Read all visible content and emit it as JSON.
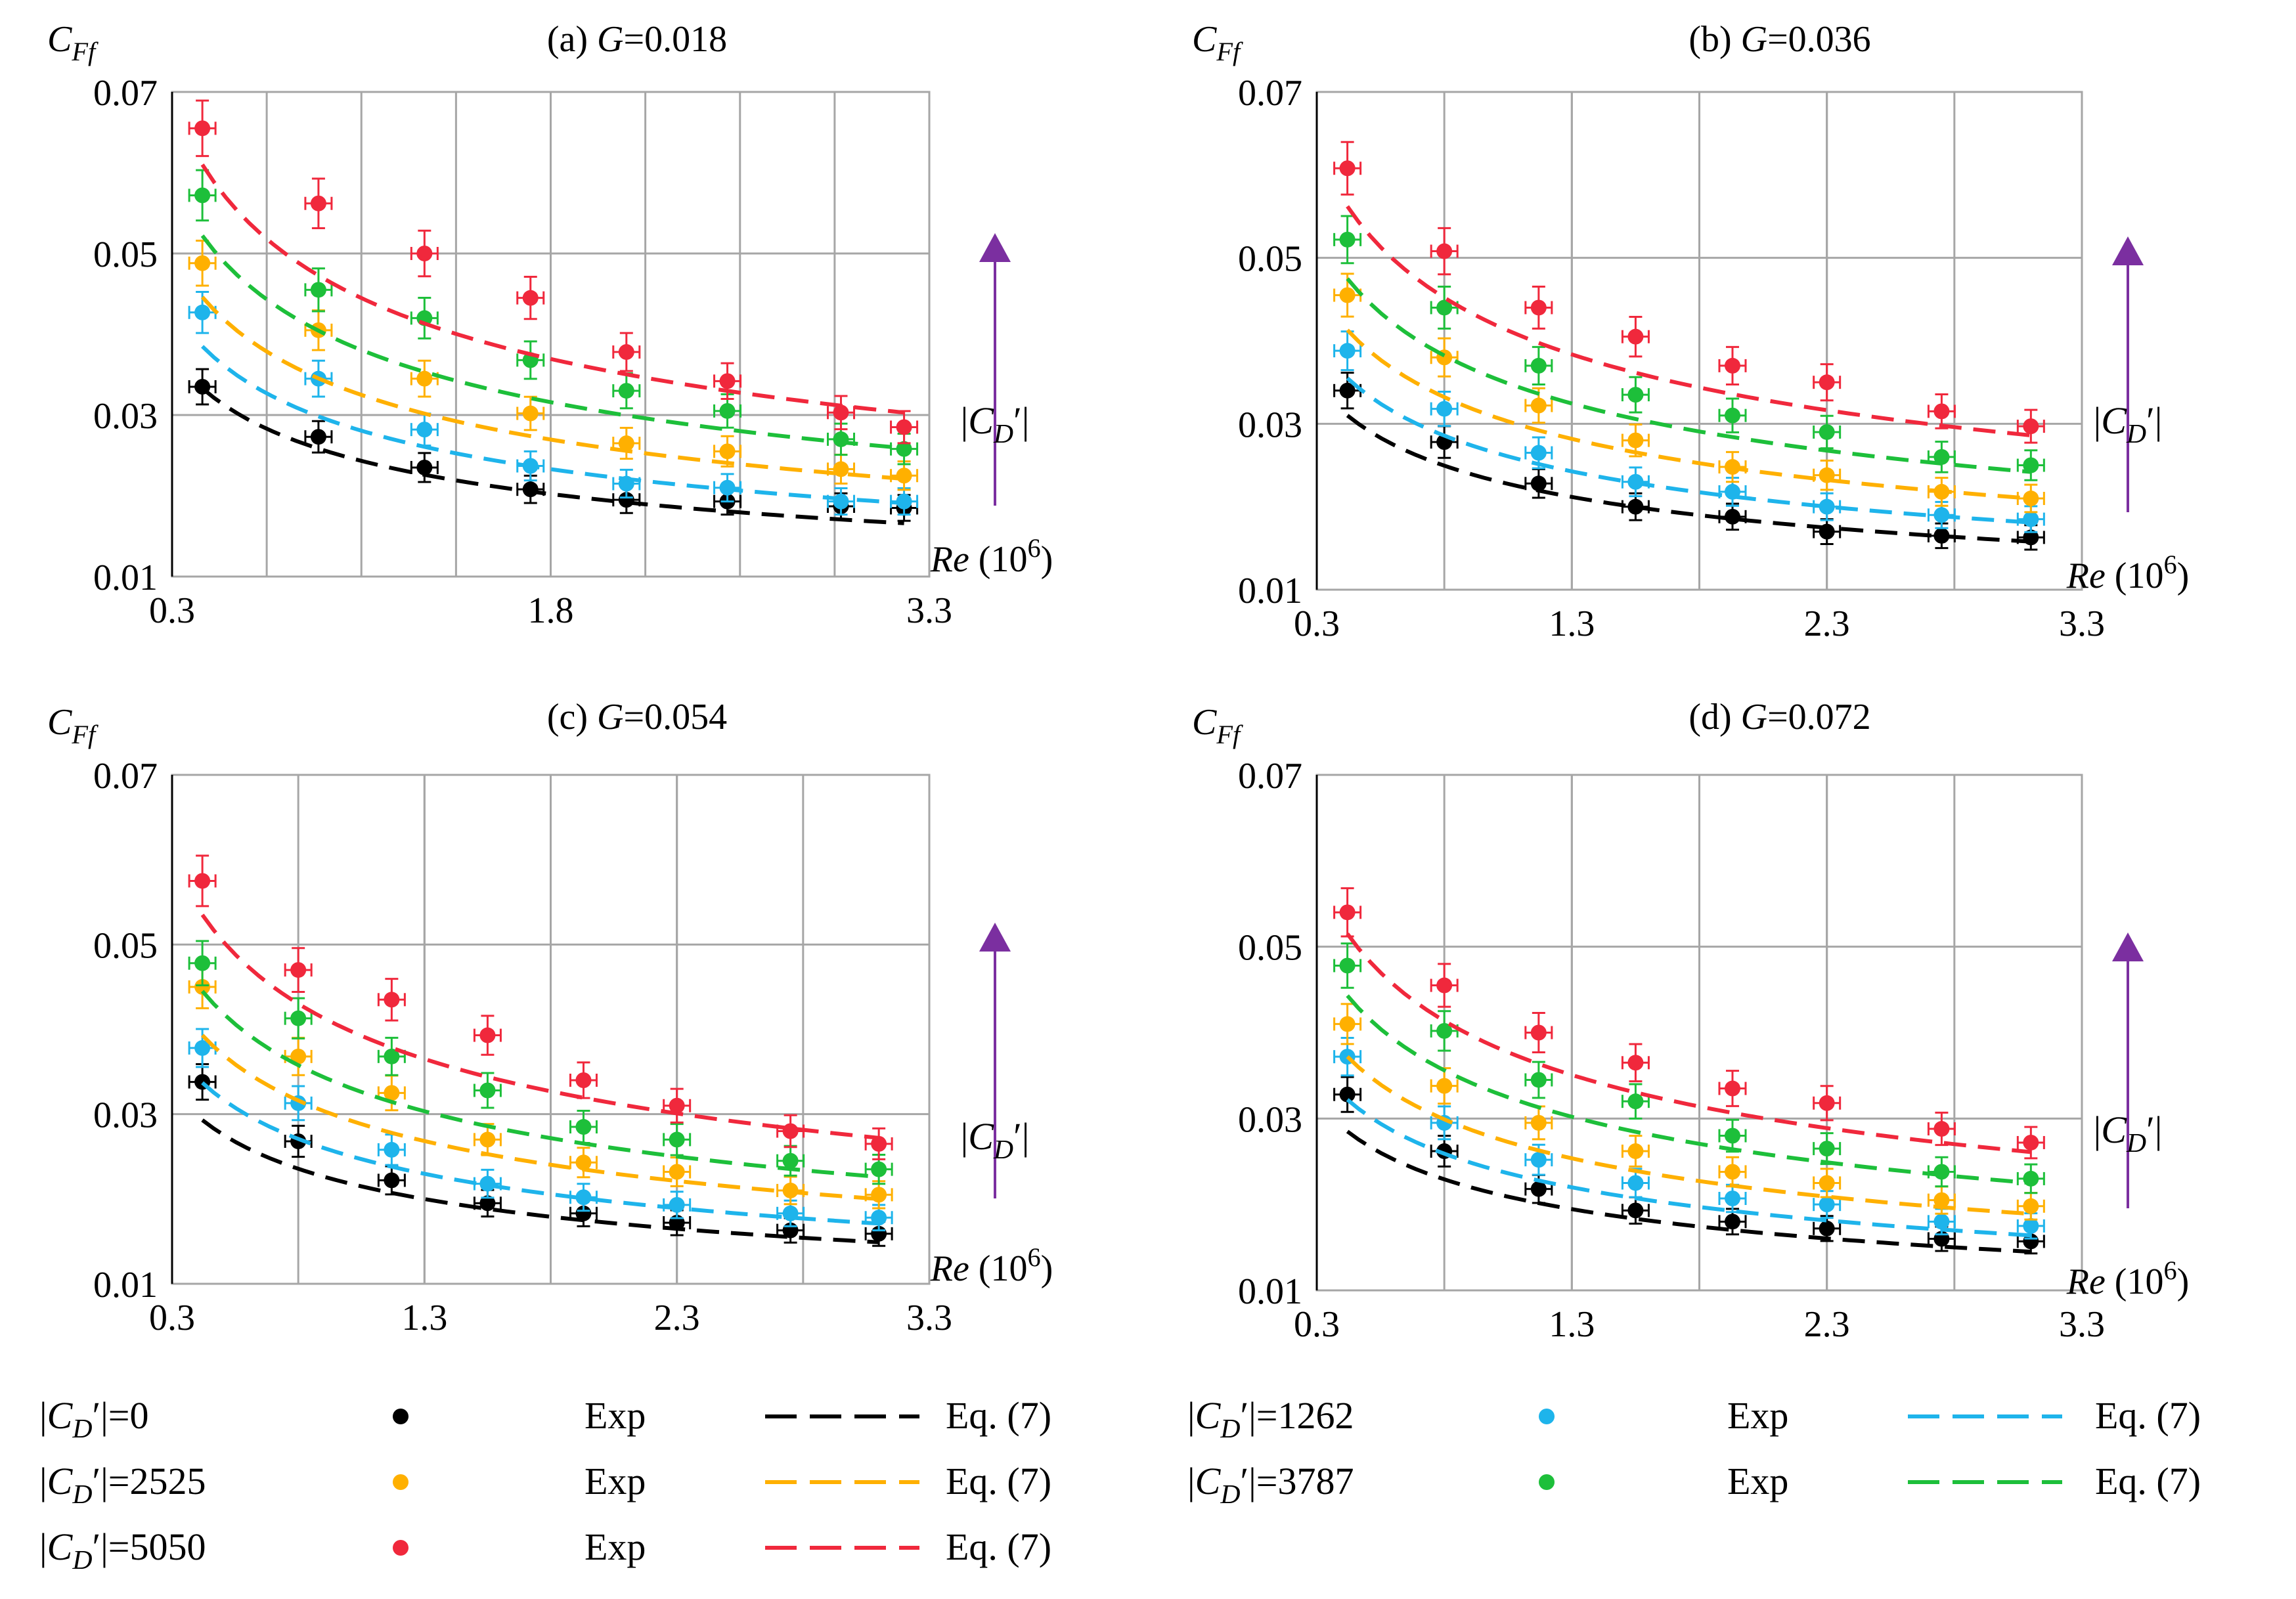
{
  "figure": {
    "legend": {
      "items": [
        {
          "id": "c0",
          "series_label": "|C_D'|=0",
          "exp_label": "Exp",
          "eq_label": "Eq.  (7)",
          "color": "#000000"
        },
        {
          "id": "c1262",
          "series_label": "|C_D'|=1262",
          "exp_label": "Exp",
          "eq_label": "Eq.  (7)",
          "color": "#1EB4EB"
        },
        {
          "id": "c2525",
          "series_label": "|C_D'|=2525",
          "exp_label": "Exp",
          "eq_label": "Eq.  (7)",
          "color": "#FFB000"
        },
        {
          "id": "c3787",
          "series_label": "|C_D'|=3787",
          "exp_label": "Exp",
          "eq_label": "Eq.  (7)",
          "color": "#1DBF3A"
        },
        {
          "id": "c5050",
          "series_label": "|C_D'|=5050",
          "exp_label": "Exp",
          "eq_label": "Eq.  (7)",
          "color": "#F0283C"
        }
      ]
    },
    "arrow_label": "|C_D'|",
    "arrow_color": "#7B2FA0"
  },
  "chart_data": [
    {
      "type": "scatter",
      "id": "a",
      "title": "(a) G=0.018",
      "ylabel": "C_Ff",
      "xlabel": "Re (10^6)",
      "xlim": [
        0.3,
        3.3
      ],
      "ylim": [
        0.01,
        0.07
      ],
      "xticks": [
        "0.3",
        "1.8",
        "3.3"
      ],
      "yticks": [
        "0.01",
        "0.03",
        "0.05",
        "0.07"
      ],
      "x": [
        0.42,
        0.88,
        1.3,
        1.72,
        2.1,
        2.5,
        2.95,
        3.2
      ],
      "series": [
        {
          "name": "|C_D'|=0",
          "exp": [
            0.0335,
            0.0273,
            0.0235,
            0.0208,
            0.0195,
            0.0193,
            0.0187,
            0.0185
          ],
          "eq": [
            0.0333,
            0.0275,
            0.0242,
            0.022,
            0.0202,
            0.0188,
            0.0174,
            0.0166
          ]
        },
        {
          "name": "|C_D'|=1262",
          "exp": [
            0.0427,
            0.0345,
            0.0282,
            0.0237,
            0.0215,
            0.021,
            0.0193,
            0.0193
          ],
          "eq": [
            0.0385,
            0.0317,
            0.0279,
            0.0254,
            0.0233,
            0.0217,
            0.02,
            0.0191
          ]
        },
        {
          "name": "|C_D'|=2525",
          "exp": [
            0.0488,
            0.0405,
            0.0345,
            0.0302,
            0.0265,
            0.0255,
            0.0233,
            0.0225
          ],
          "eq": [
            0.0446,
            0.0367,
            0.0323,
            0.0294,
            0.0269,
            0.0251,
            0.0232,
            0.0221
          ]
        },
        {
          "name": "|C_D'|=3787",
          "exp": [
            0.0572,
            0.0455,
            0.042,
            0.0368,
            0.033,
            0.0305,
            0.027,
            0.0258
          ],
          "eq": [
            0.0522,
            0.043,
            0.0378,
            0.0344,
            0.0315,
            0.0294,
            0.0271,
            0.0259
          ]
        },
        {
          "name": "|C_D'|=5050",
          "exp": [
            0.0655,
            0.0562,
            0.05,
            0.0445,
            0.0378,
            0.0342,
            0.0303,
            0.0285
          ],
          "eq": [
            0.061,
            0.0503,
            0.0442,
            0.0402,
            0.0368,
            0.0343,
            0.0317,
            0.0303
          ]
        }
      ]
    },
    {
      "type": "scatter",
      "id": "b",
      "title": "(b) G=0.036",
      "ylabel": "C_Ff",
      "xlabel": "Re (10^6)",
      "xlim": [
        0.3,
        3.3
      ],
      "ylim": [
        0.01,
        0.07
      ],
      "xticks": [
        "0.3",
        "1.3",
        "2.3",
        "3.3"
      ],
      "yticks": [
        "0.01",
        "0.03",
        "0.05",
        "0.07"
      ],
      "x": [
        0.42,
        0.8,
        1.17,
        1.55,
        1.93,
        2.3,
        2.75,
        3.1
      ],
      "series": [
        {
          "name": "|C_D'|=0",
          "exp": [
            0.034,
            0.0278,
            0.0228,
            0.02,
            0.0188,
            0.017,
            0.0165,
            0.0163
          ],
          "eq": [
            0.031,
            0.0255,
            0.0225,
            0.0205,
            0.019,
            0.0178,
            0.0166,
            0.0158
          ]
        },
        {
          "name": "|C_D'|=1262",
          "exp": [
            0.0388,
            0.0318,
            0.0265,
            0.023,
            0.0218,
            0.02,
            0.019,
            0.0185
          ],
          "eq": [
            0.0355,
            0.0293,
            0.0258,
            0.0235,
            0.0217,
            0.0204,
            0.019,
            0.0181
          ]
        },
        {
          "name": "|C_D'|=2525",
          "exp": [
            0.0455,
            0.038,
            0.0322,
            0.028,
            0.0248,
            0.0238,
            0.0218,
            0.021
          ],
          "eq": [
            0.0413,
            0.034,
            0.03,
            0.0273,
            0.0252,
            0.0237,
            0.0221,
            0.021
          ]
        },
        {
          "name": "|C_D'|=3787",
          "exp": [
            0.0522,
            0.044,
            0.037,
            0.0335,
            0.031,
            0.029,
            0.026,
            0.025
          ],
          "eq": [
            0.0475,
            0.0391,
            0.0345,
            0.0314,
            0.029,
            0.0273,
            0.0254,
            0.0242
          ]
        },
        {
          "name": "|C_D'|=5050",
          "exp": [
            0.0608,
            0.0508,
            0.044,
            0.0405,
            0.037,
            0.035,
            0.0315,
            0.0297
          ],
          "eq": [
            0.0562,
            0.0463,
            0.0408,
            0.0372,
            0.0343,
            0.0323,
            0.03,
            0.0286
          ]
        }
      ]
    },
    {
      "type": "scatter",
      "id": "c",
      "title": "(c) G=0.054",
      "ylabel": "C_Ff",
      "xlabel": "Re (10^6)",
      "xlim": [
        0.3,
        3.3
      ],
      "ylim": [
        0.01,
        0.07
      ],
      "xticks": [
        "0.3",
        "1.3",
        "2.3",
        "3.3"
      ],
      "yticks": [
        "0.01",
        "0.03",
        "0.05",
        "0.07"
      ],
      "x": [
        0.42,
        0.8,
        1.17,
        1.55,
        1.93,
        2.3,
        2.75,
        3.1
      ],
      "series": [
        {
          "name": "|C_D'|=0",
          "exp": [
            0.0338,
            0.0268,
            0.0222,
            0.0195,
            0.0183,
            0.0172,
            0.0163,
            0.0159
          ],
          "eq": [
            0.0293,
            0.0242,
            0.0213,
            0.0194,
            0.0179,
            0.0168,
            0.0156,
            0.0149
          ]
        },
        {
          "name": "|C_D'|=1262",
          "exp": [
            0.0378,
            0.0313,
            0.0258,
            0.0218,
            0.0202,
            0.0193,
            0.0183,
            0.0178
          ],
          "eq": [
            0.0337,
            0.0278,
            0.0245,
            0.0223,
            0.0206,
            0.0193,
            0.018,
            0.0171
          ]
        },
        {
          "name": "|C_D'|=2525",
          "exp": [
            0.045,
            0.0368,
            0.0325,
            0.027,
            0.0243,
            0.0232,
            0.021,
            0.0205
          ],
          "eq": [
            0.0393,
            0.0324,
            0.0285,
            0.026,
            0.024,
            0.0225,
            0.021,
            0.02
          ]
        },
        {
          "name": "|C_D'|=3787",
          "exp": [
            0.0478,
            0.0413,
            0.0368,
            0.0328,
            0.0285,
            0.027,
            0.0245,
            0.0235
          ],
          "eq": [
            0.0445,
            0.0367,
            0.0323,
            0.0294,
            0.0272,
            0.0255,
            0.0237,
            0.0226
          ]
        },
        {
          "name": "|C_D'|=5050",
          "exp": [
            0.0575,
            0.047,
            0.0435,
            0.0393,
            0.034,
            0.031,
            0.028,
            0.0265
          ],
          "eq": [
            0.0535,
            0.0441,
            0.0388,
            0.0353,
            0.0327,
            0.0307,
            0.0285,
            0.0272
          ]
        }
      ]
    },
    {
      "type": "scatter",
      "id": "d",
      "title": "(d) G=0.072",
      "ylabel": "C_Ff",
      "xlabel": "Re (10^6)",
      "xlim": [
        0.3,
        3.3
      ],
      "ylim": [
        0.01,
        0.07
      ],
      "xticks": [
        "0.3",
        "1.3",
        "2.3",
        "3.3"
      ],
      "yticks": [
        "0.01",
        "0.03",
        "0.05",
        "0.07"
      ],
      "x": [
        0.42,
        0.8,
        1.17,
        1.55,
        1.93,
        2.3,
        2.75,
        3.1
      ],
      "series": [
        {
          "name": "|C_D'|=0",
          "exp": [
            0.0328,
            0.0262,
            0.0218,
            0.0193,
            0.018,
            0.0172,
            0.016,
            0.0157
          ],
          "eq": [
            0.0285,
            0.0235,
            0.0207,
            0.0188,
            0.0174,
            0.0163,
            0.0152,
            0.0145
          ]
        },
        {
          "name": "|C_D'|=1262",
          "exp": [
            0.0372,
            0.0295,
            0.0252,
            0.0225,
            0.0207,
            0.02,
            0.018,
            0.0175
          ],
          "eq": [
            0.0322,
            0.0265,
            0.0234,
            0.0213,
            0.0197,
            0.0185,
            0.0172,
            0.0164
          ]
        },
        {
          "name": "|C_D'|=2525",
          "exp": [
            0.041,
            0.0338,
            0.0295,
            0.0262,
            0.0238,
            0.0225,
            0.0205,
            0.0198
          ],
          "eq": [
            0.0372,
            0.0306,
            0.027,
            0.0246,
            0.0227,
            0.0213,
            0.0198,
            0.0189
          ]
        },
        {
          "name": "|C_D'|=3787",
          "exp": [
            0.0478,
            0.0402,
            0.0345,
            0.032,
            0.028,
            0.0265,
            0.0238,
            0.023
          ],
          "eq": [
            0.0443,
            0.0365,
            0.0322,
            0.0293,
            0.0271,
            0.0254,
            0.0236,
            0.0225
          ]
        },
        {
          "name": "|C_D'|=5050",
          "exp": [
            0.054,
            0.0455,
            0.04,
            0.0365,
            0.0335,
            0.0318,
            0.0288,
            0.0272
          ],
          "eq": [
            0.0515,
            0.0424,
            0.0374,
            0.034,
            0.0314,
            0.0295,
            0.0274,
            0.0261
          ]
        }
      ]
    }
  ]
}
